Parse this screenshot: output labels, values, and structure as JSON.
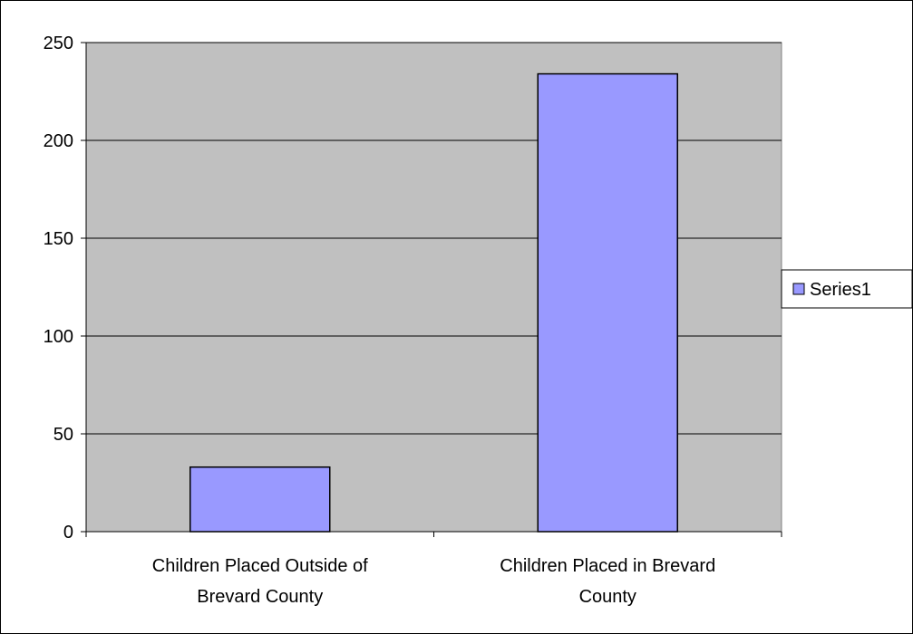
{
  "chart_data": {
    "type": "bar",
    "title": "",
    "xlabel": "",
    "ylabel": "",
    "categories": [
      [
        "Children Placed Outside of",
        "Brevard County"
      ],
      [
        "Children Placed in Brevard",
        "County"
      ]
    ],
    "series": [
      {
        "name": "Series1",
        "values": [
          33,
          234
        ]
      }
    ],
    "ylim": [
      0,
      250
    ],
    "yticks": [
      "0",
      "50",
      "100",
      "150",
      "200",
      "250"
    ],
    "grid": true,
    "legend": "right",
    "colors": {
      "plot_background": "#c0c0c0",
      "bar_fill": "#9999ff",
      "bar_stroke": "#000000",
      "gridline": "#000000"
    }
  }
}
